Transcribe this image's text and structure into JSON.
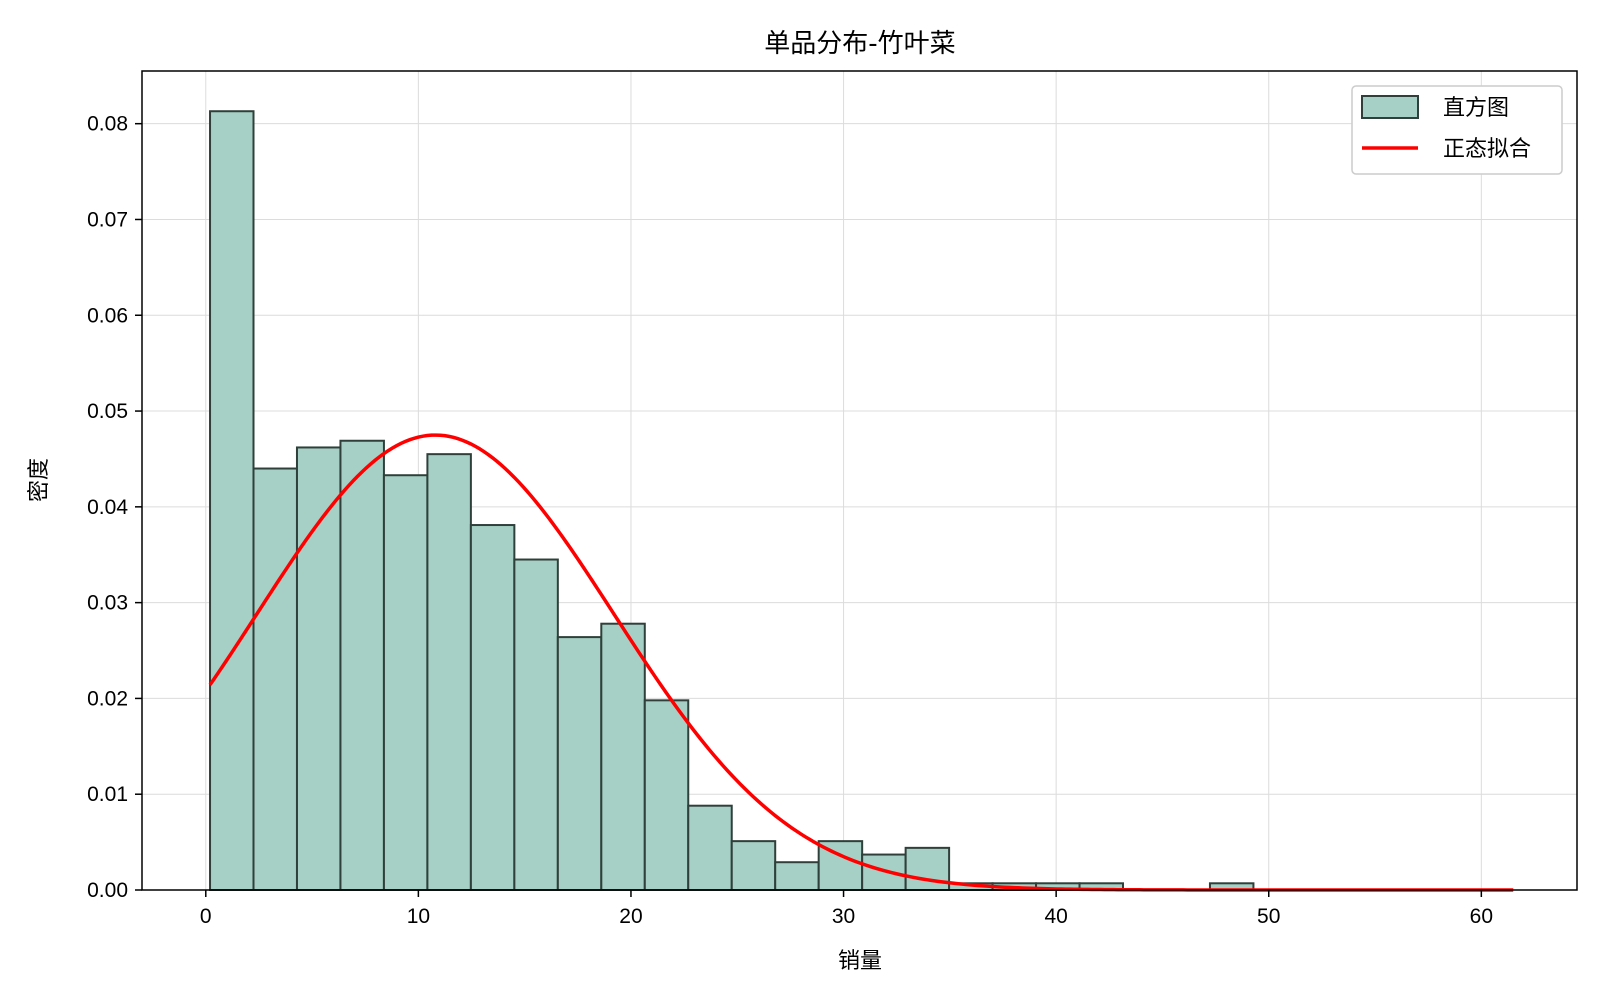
{
  "chart_data": {
    "type": "bar",
    "title": "单品分布-竹叶菜",
    "xlabel": "销量",
    "ylabel": "密度",
    "xlim": [
      -3,
      64.5
    ],
    "ylim": [
      0,
      0.0855
    ],
    "grid": true,
    "legend_position": "top-right",
    "xticks": [
      0,
      10,
      20,
      30,
      40,
      50,
      60
    ],
    "yticks": [
      0.0,
      0.01,
      0.02,
      0.03,
      0.04,
      0.05,
      0.06,
      0.07,
      0.08
    ],
    "ytick_labels": [
      "0.00",
      "0.01",
      "0.02",
      "0.03",
      "0.04",
      "0.05",
      "0.06",
      "0.07",
      "0.08"
    ],
    "histogram": {
      "name": "直方图",
      "bin_start": 0.2,
      "bin_width": 2.045,
      "densities": [
        0.0813,
        0.044,
        0.0462,
        0.0469,
        0.0433,
        0.0455,
        0.0381,
        0.0345,
        0.0264,
        0.0278,
        0.0198,
        0.0088,
        0.0051,
        0.0029,
        0.0051,
        0.0037,
        0.0044,
        0.0007,
        0.0007,
        0.0007,
        0.0007,
        0.0,
        0.0,
        0.0007,
        0.0,
        0.0,
        0.0,
        0.0,
        0.0,
        0.0,
        0.0,
        0.0,
        0.0007,
        0.0,
        0.0,
        0.0,
        0.0,
        0.0,
        0.0,
        0.0,
        0.0,
        0.0,
        0.0,
        0.0,
        0.0,
        0.0,
        0.0,
        0.0,
        0.0,
        0.0,
        0.0,
        0.0,
        0.0,
        0.0,
        0.0,
        0.0,
        0.0,
        0.0,
        0.0,
        0.0
      ],
      "fill_color": "#a6d0c5",
      "edge_color": "#2f3f3a"
    },
    "normal_fit": {
      "name": "正态拟合",
      "mean": 10.8,
      "std": 8.4,
      "x_range": [
        0.2,
        61.5
      ],
      "color": "#ff0000"
    }
  }
}
